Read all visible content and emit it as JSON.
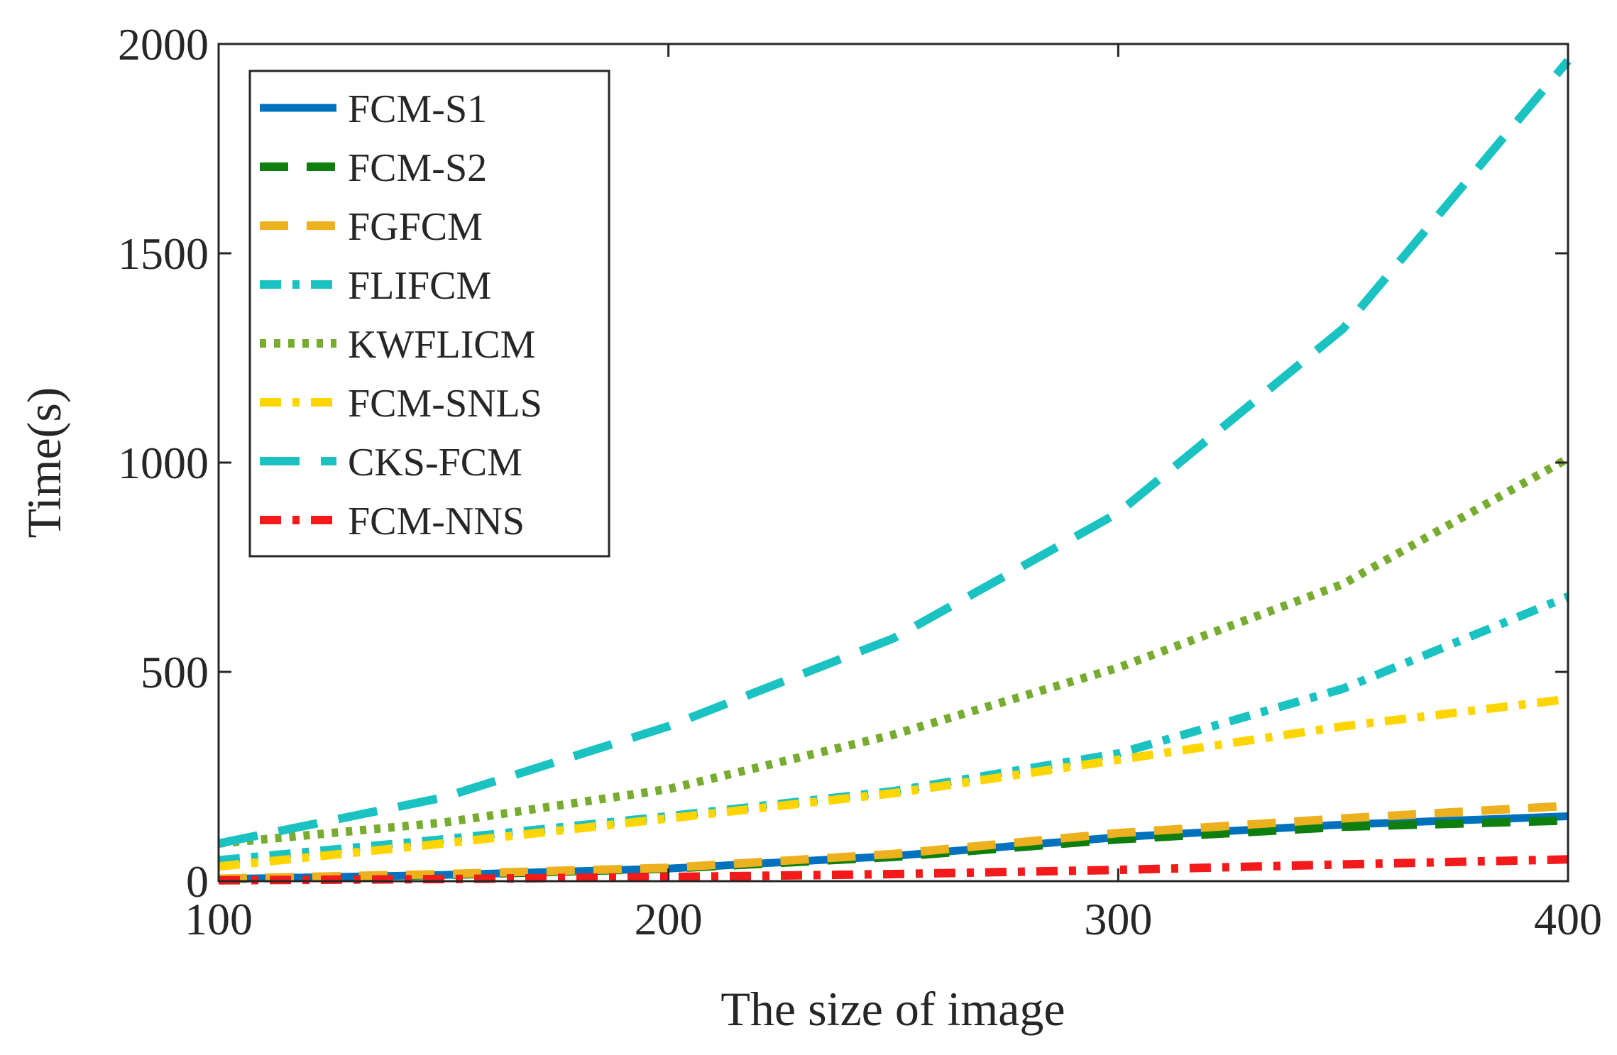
{
  "chart_data": {
    "type": "line",
    "title": "",
    "xlabel": "The size of image",
    "ylabel": "Time(s)",
    "xlim": [
      100,
      400
    ],
    "ylim": [
      0,
      2000
    ],
    "x_ticks": [
      "100",
      "200",
      "300",
      "400"
    ],
    "y_ticks": [
      "0",
      "500",
      "1000",
      "1500",
      "2000"
    ],
    "legend_position": "top-left",
    "x": [
      100,
      150,
      200,
      250,
      300,
      350,
      400
    ],
    "series": [
      {
        "name": "FCM-S1",
        "color": "#0072BD",
        "style": "solid",
        "values": [
          5,
          15,
          30,
          60,
          105,
          135,
          155
        ]
      },
      {
        "name": "FCM-S2",
        "color": "#0E7F0E",
        "style": "dash",
        "values": [
          5,
          15,
          30,
          58,
          100,
          130,
          145
        ]
      },
      {
        "name": "FGFCM",
        "color": "#EDB120",
        "style": "dash",
        "values": [
          6,
          17,
          32,
          65,
          115,
          150,
          180
        ]
      },
      {
        "name": "FLIFCM",
        "color": "#1BC2C2",
        "style": "dashdot",
        "values": [
          50,
          100,
          155,
          215,
          305,
          460,
          680
        ]
      },
      {
        "name": "KWFLICM",
        "color": "#77AC30",
        "style": "dot",
        "values": [
          90,
          140,
          220,
          350,
          510,
          710,
          1010
        ]
      },
      {
        "name": "FCM-SNLS",
        "color": "#FFD500",
        "style": "dashdot",
        "values": [
          35,
          90,
          150,
          210,
          290,
          370,
          435
        ]
      },
      {
        "name": "CKS-FCM",
        "color": "#1BC2C2",
        "style": "longdash",
        "values": [
          90,
          200,
          370,
          580,
          880,
          1320,
          1960
        ]
      },
      {
        "name": "FCM-NNS",
        "color": "#F21A1A",
        "style": "dashdot",
        "values": [
          2,
          5,
          10,
          17,
          27,
          40,
          52
        ]
      }
    ]
  }
}
